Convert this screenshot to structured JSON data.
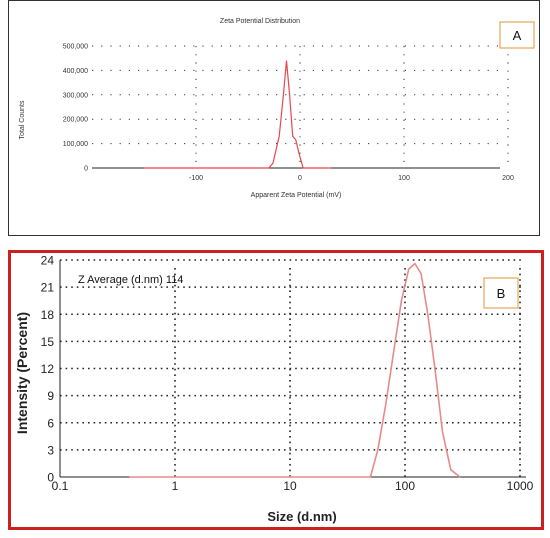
{
  "chart_data": [
    {
      "type": "line",
      "panel_label": "A",
      "title": "Zeta Potential Distribution",
      "xlabel": "Apparent Zeta Potential (mV)",
      "ylabel": "Total Counts",
      "xlim": [
        -200,
        200
      ],
      "ylim": [
        0,
        500000
      ],
      "x_ticks": [
        "-100",
        "0",
        "100",
        "200"
      ],
      "x_tick_values": [
        -100,
        0,
        100,
        200
      ],
      "y_ticks": [
        "0",
        "100,000",
        "200,000",
        "300,000",
        "400,000",
        "500,000"
      ],
      "y_tick_values": [
        0,
        100000,
        200000,
        300000,
        400000,
        500000
      ],
      "grid": true,
      "line_color": "#e8474c",
      "series": [
        {
          "x": [
            -150,
            -30,
            -26,
            -20,
            -16,
            -13,
            -10,
            -7,
            -4,
            -1,
            3,
            30
          ],
          "y": [
            0,
            0,
            20000,
            130000,
            300000,
            440000,
            300000,
            130000,
            115000,
            60000,
            0,
            0
          ]
        }
      ]
    },
    {
      "type": "line",
      "panel_label": "B",
      "annotation": "Z Average (d.nm) 114",
      "xlabel": "Size (d.nm)",
      "ylabel": "Intensity (Percent)",
      "x_scale": "log",
      "xlim": [
        0.1,
        1000
      ],
      "ylim": [
        0,
        24
      ],
      "x_ticks": [
        "0.1",
        "1",
        "10",
        "100",
        "1000"
      ],
      "x_tick_values": [
        0.1,
        1,
        10,
        100,
        1000
      ],
      "y_ticks": [
        "0",
        "3",
        "6",
        "9",
        "12",
        "15",
        "18",
        "21",
        "24"
      ],
      "y_tick_values": [
        0,
        3,
        6,
        9,
        12,
        15,
        18,
        21,
        24
      ],
      "grid": true,
      "line_color": "#e88a8c",
      "frame_color": "#cc1f1f",
      "series": [
        {
          "x": [
            0.4,
            50,
            58,
            68,
            80,
            93,
            108,
            122,
            138,
            158,
            182,
            212,
            250,
            300
          ],
          "y": [
            0,
            0,
            3,
            8,
            14,
            19.5,
            23,
            23.6,
            22.5,
            18,
            12,
            5,
            0.8,
            0
          ]
        }
      ]
    }
  ]
}
